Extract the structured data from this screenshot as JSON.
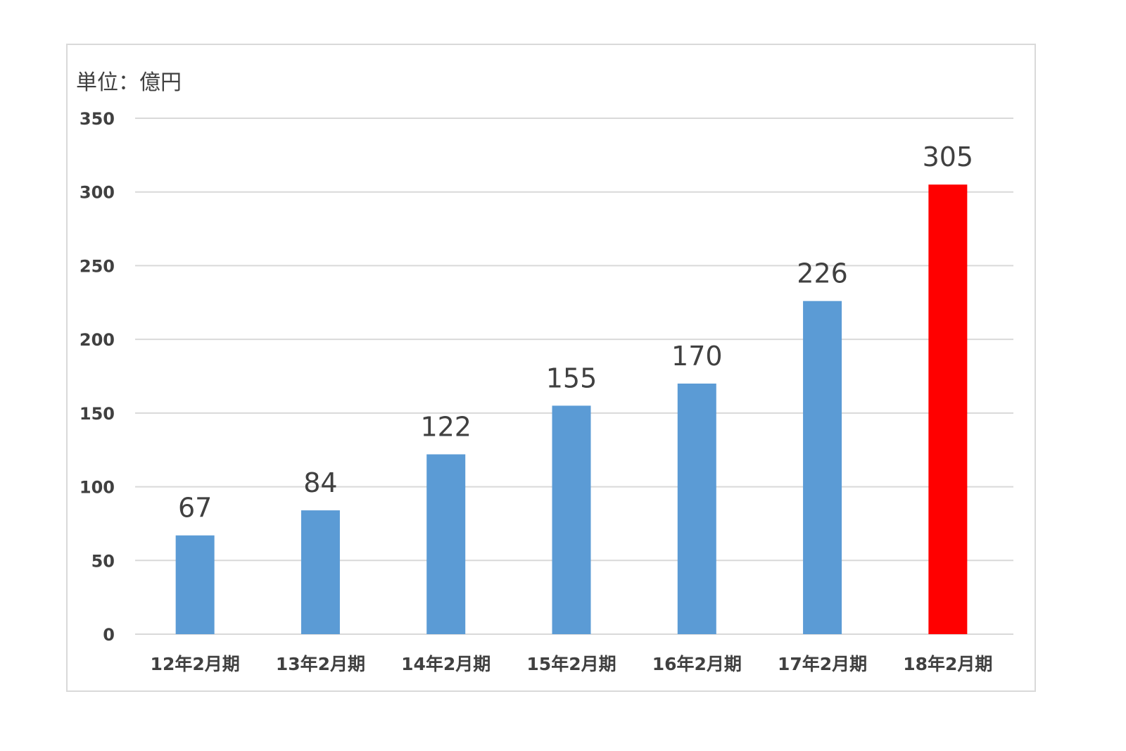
{
  "chart_data": {
    "type": "bar",
    "unit_label": "単位：億円",
    "categories": [
      "12年2月期",
      "13年2月期",
      "14年2月期",
      "15年2月期",
      "16年2月期",
      "17年2月期",
      "18年2月期"
    ],
    "values": [
      67,
      84,
      122,
      155,
      170,
      226,
      305
    ],
    "data_labels": [
      "67",
      "84",
      "122",
      "155",
      "170",
      "226",
      "305"
    ],
    "bar_colors": [
      "#5b9bd5",
      "#5b9bd5",
      "#5b9bd5",
      "#5b9bd5",
      "#5b9bd5",
      "#5b9bd5",
      "#ff0000"
    ],
    "ylim": [
      0,
      350
    ],
    "yticks": [
      0,
      50,
      100,
      150,
      200,
      250,
      300,
      350
    ],
    "grid": true,
    "legend": "none"
  }
}
